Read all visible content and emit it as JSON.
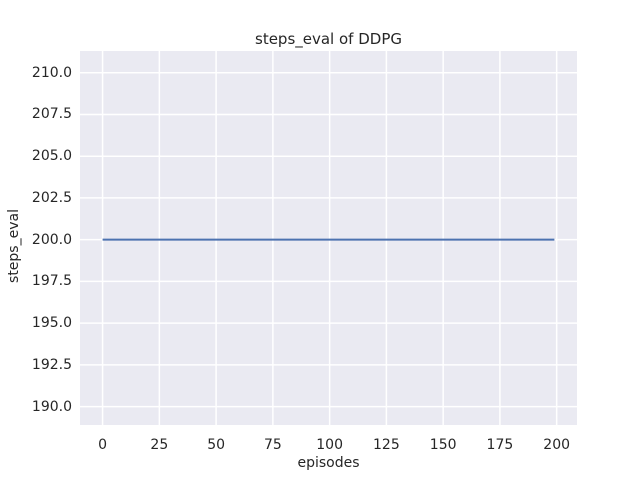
{
  "figure": {
    "background": "#ffffff",
    "axes_background": "#EAEAF2",
    "grid_color": "#ffffff",
    "text_color": "#262626"
  },
  "chart_data": {
    "type": "line",
    "title": "steps_eval of DDPG",
    "xlabel": "episodes",
    "ylabel": "steps_eval",
    "x_tick_labels": [
      "0",
      "25",
      "50",
      "75",
      "100",
      "125",
      "150",
      "175",
      "200"
    ],
    "y_tick_labels": [
      "210.0",
      "207.5",
      "205.0",
      "202.5",
      "200.0",
      "197.5",
      "195.0",
      "192.5",
      "190.0"
    ],
    "xlim": [
      -9.95,
      208.95
    ],
    "ylim": [
      188.9,
      211.3
    ],
    "grid": true,
    "legend": null,
    "series": [
      {
        "name": "steps_eval",
        "color": "#4C72B0",
        "line_width": 2,
        "x": [
          0,
          199
        ],
        "y": [
          200,
          200
        ]
      }
    ]
  }
}
